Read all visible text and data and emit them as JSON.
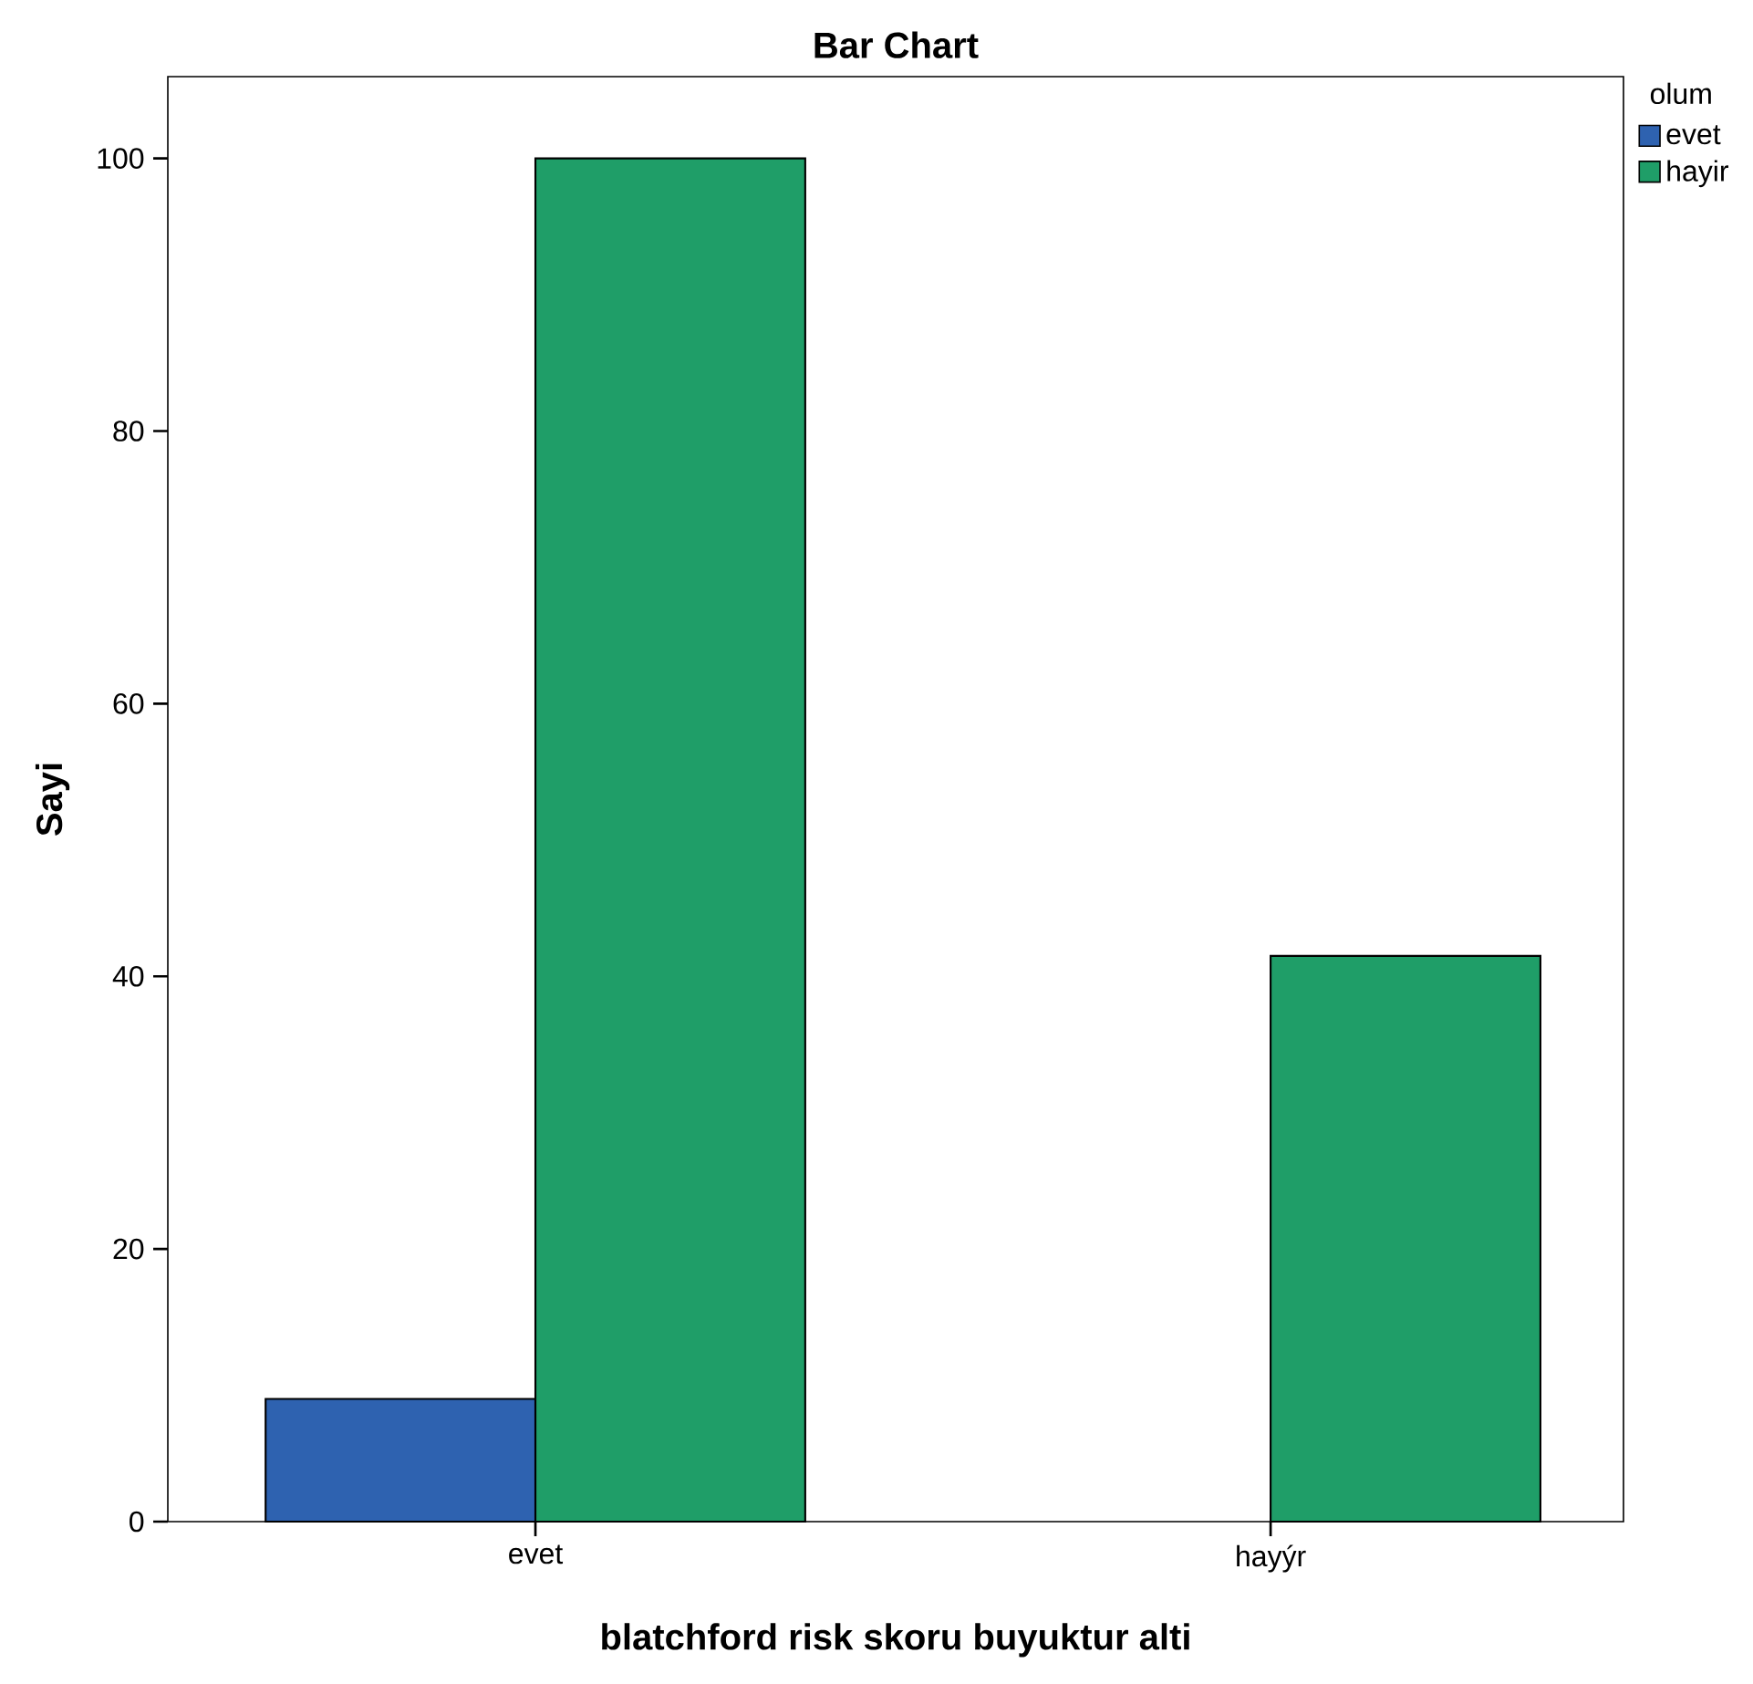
{
  "chart_data": {
    "type": "bar",
    "title": "Bar Chart",
    "xlabel": "blatchford risk skoru buyuktur alti",
    "ylabel": "Sayi",
    "legend_title": "olum",
    "categories": [
      "evet",
      "hayýr"
    ],
    "series": [
      {
        "name": "evet",
        "color": "#2e62b0",
        "values": [
          9,
          null
        ]
      },
      {
        "name": "hayir",
        "color": "#1f9e68",
        "values": [
          100,
          41.5
        ]
      }
    ],
    "ylim": [
      0,
      106
    ],
    "yticks": [
      0,
      20,
      40,
      60,
      80,
      100
    ],
    "legend": "top right"
  }
}
